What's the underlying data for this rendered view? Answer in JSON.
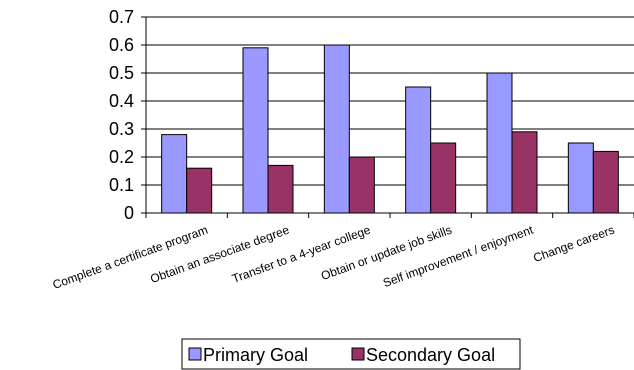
{
  "chart_data": {
    "type": "bar",
    "categories": [
      "Complete a certificate program",
      "Obtain an associate degree",
      "Transfer to a 4-year college",
      "Obtain or update job skills",
      "Self improvement / enjoyment",
      "Change careers"
    ],
    "series": [
      {
        "name": "Primary Goal",
        "values": [
          0.28,
          0.59,
          0.6,
          0.45,
          0.5,
          0.25
        ],
        "color": "#9999ff"
      },
      {
        "name": "Secondary Goal",
        "values": [
          0.16,
          0.17,
          0.2,
          0.25,
          0.29,
          0.22
        ],
        "color": "#993366"
      }
    ],
    "yticks": [
      "0",
      "0.1",
      "0.2",
      "0.3",
      "0.4",
      "0.5",
      "0.6",
      "0.7"
    ],
    "ylim": [
      0,
      0.7
    ],
    "grid": true,
    "legend_position": "bottom"
  }
}
